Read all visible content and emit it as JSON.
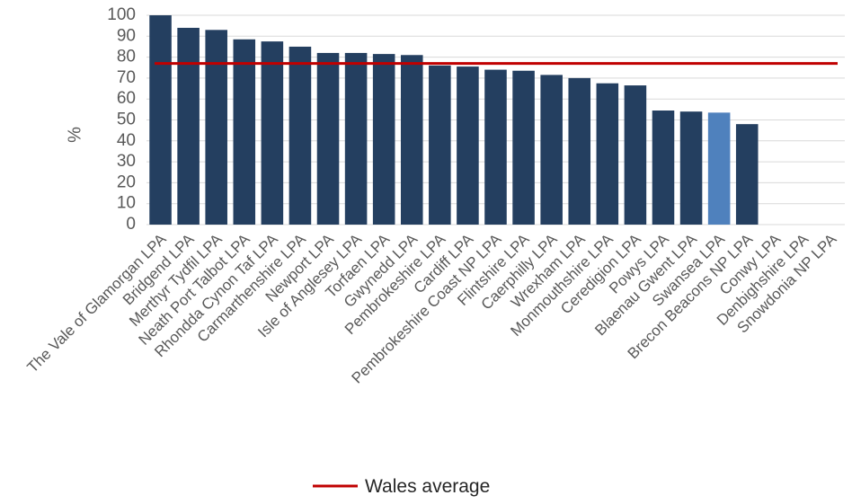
{
  "chart_data": {
    "type": "bar",
    "title": "",
    "xlabel": "",
    "ylabel": "%",
    "ylim": [
      0,
      100
    ],
    "yticks": [
      0,
      10,
      20,
      30,
      40,
      50,
      60,
      70,
      80,
      90,
      100
    ],
    "grid": true,
    "legend_position": "bottom",
    "categories": [
      "The Vale of Glamorgan LPA",
      "Bridgend LPA",
      "Merthyr Tydfil LPA",
      "Neath Port Talbot LPA",
      "Rhondda Cynon Taf LPA",
      "Carmarthenshire LPA",
      "Newport LPA",
      "Isle of Anglesey LPA",
      "Torfaen LPA",
      "Gwynedd LPA",
      "Pembrokeshire LPA",
      "Cardiff LPA",
      "Pembrokeshire Coast NP LPA",
      "Flintshire LPA",
      "Caerphilly LPA",
      "Wrexham LPA",
      "Monmouthshire LPA",
      "Ceredigion LPA",
      "Powys LPA",
      "Blaenau Gwent LPA",
      "Swansea LPA",
      "Brecon Beacons NP LPA",
      "Conwy LPA",
      "Denbighshire LPA",
      "Snowdonia NP LPA"
    ],
    "values": [
      100,
      94,
      93,
      88.5,
      87.5,
      85,
      82,
      82,
      81.5,
      81,
      76,
      75.5,
      74,
      73.5,
      71.5,
      70,
      67.5,
      66.5,
      54.5,
      54,
      53.5,
      48,
      null,
      null,
      null
    ],
    "highlight_category": "Swansea LPA",
    "reference_line": {
      "name": "Wales average",
      "value": 77
    },
    "colors": {
      "bar": "#243f60",
      "highlight": "#4f81bd",
      "average_line": "#c00000",
      "grid": "#d9d9d9"
    }
  }
}
